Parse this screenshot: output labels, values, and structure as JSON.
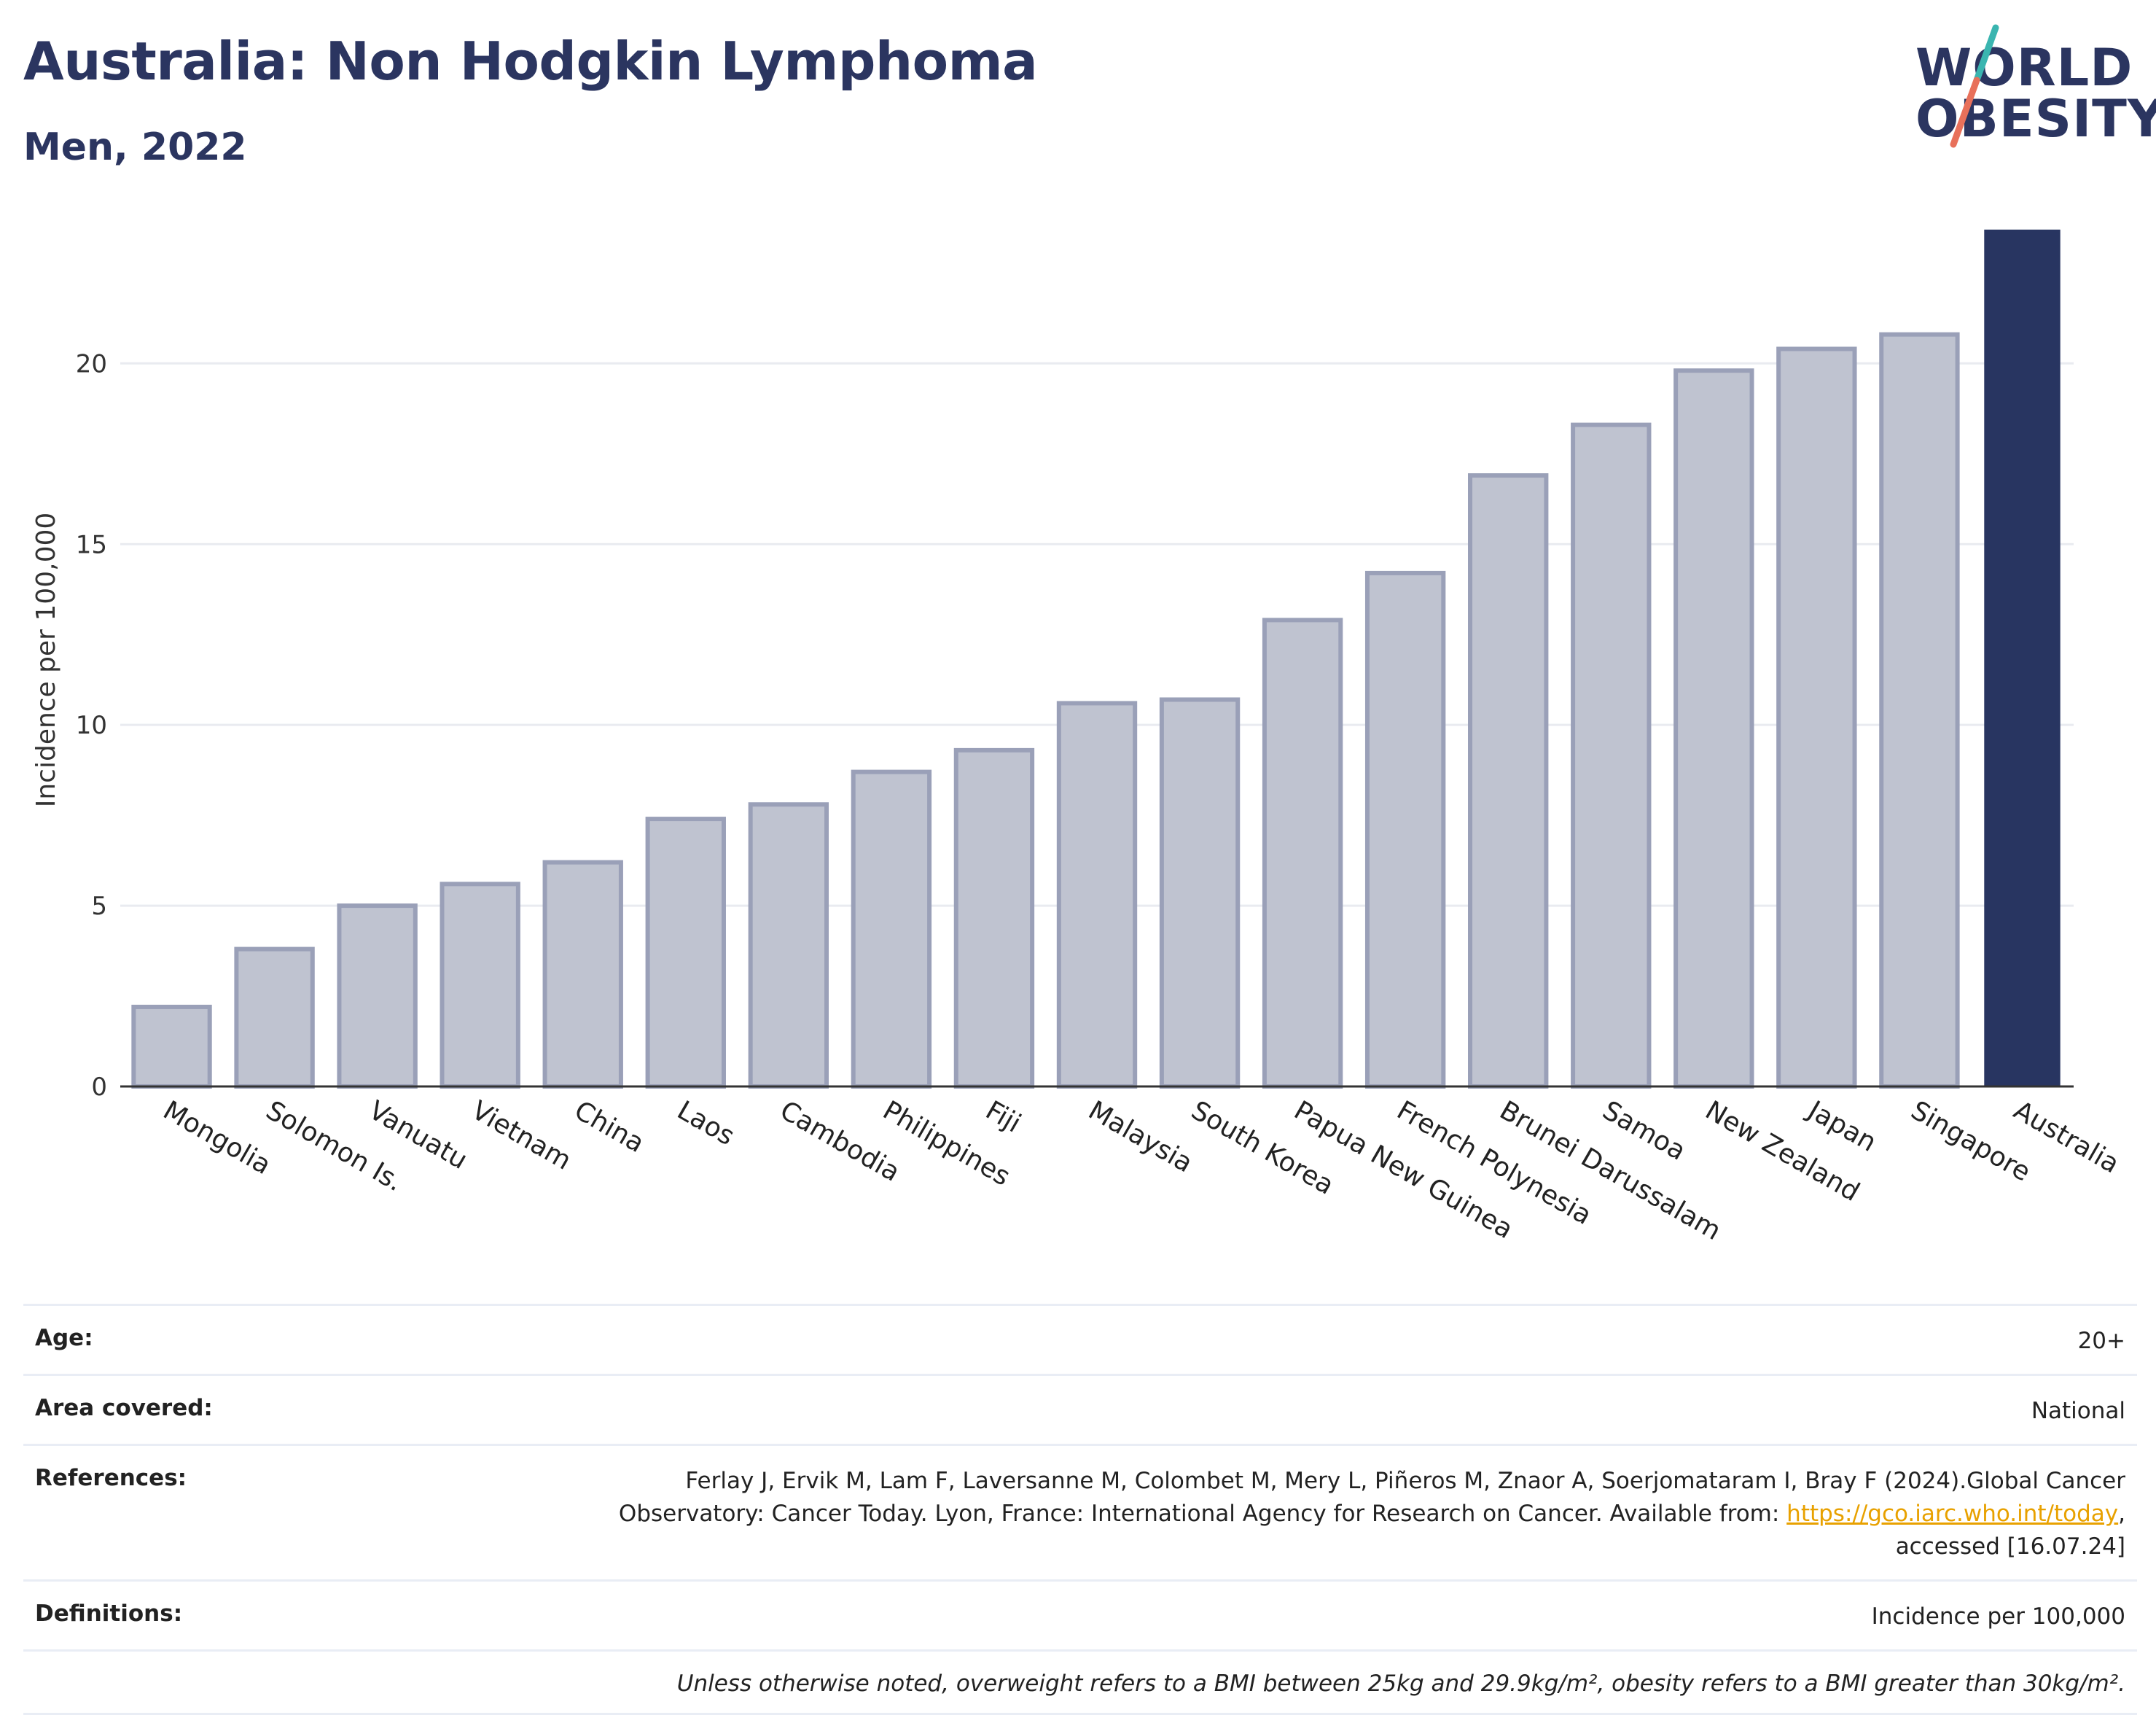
{
  "header": {
    "title": "Australia: Non Hodgkin Lymphoma",
    "subtitle": "Men, 2022"
  },
  "logo": {
    "line1": "WORLD",
    "line2": "OBESITY",
    "colors": {
      "text": "#2b3560",
      "slash_top": "#3ab5b0",
      "slash_bottom": "#e8705a"
    }
  },
  "colors": {
    "bar_default": "#bfc3d0",
    "bar_default_border": "#9aa0b8",
    "bar_highlight": "#283561",
    "grid": "#e9ebf0",
    "axis": "#333333"
  },
  "chart_data": {
    "type": "bar",
    "title": "",
    "xlabel": "",
    "ylabel": "Incidence per 100,000",
    "ylim": [
      0,
      24
    ],
    "yticks": [
      0,
      5,
      10,
      15,
      20
    ],
    "grid": true,
    "highlight": "Australia",
    "categories": [
      "Mongolia",
      "Solomon Is.",
      "Vanuatu",
      "Vietnam",
      "China",
      "Laos",
      "Cambodia",
      "Philippines",
      "Fiji",
      "Malaysia",
      "South Korea",
      "Papua New Guinea",
      "French Polynesia",
      "Brunei Darussalam",
      "Samoa",
      "New Zealand",
      "Japan",
      "Singapore",
      "Australia"
    ],
    "values": [
      2.2,
      3.8,
      5.0,
      5.6,
      6.2,
      7.4,
      7.8,
      8.7,
      9.3,
      10.6,
      10.7,
      12.9,
      14.2,
      16.9,
      18.3,
      19.8,
      20.4,
      20.8,
      23.7
    ]
  },
  "meta": {
    "age_label": "Age:",
    "age_value": "20+",
    "area_label": "Area covered:",
    "area_value": "National",
    "references_label": "References:",
    "references_line1": "Ferlay J, Ervik M, Lam F, Laversanne M, Colombet M, Mery L, Piñeros M, Znaor A, Soerjomataram I, Bray F (2024).Global Cancer",
    "references_line2_pre": "Observatory: Cancer Today. Lyon, France: International Agency for Research on Cancer. Available from: ",
    "references_link": "https://gco.iarc.who.int/today",
    "references_line2_post": ",",
    "references_line3": "accessed [16.07.24]",
    "definitions_label": "Definitions:",
    "definitions_value": "Incidence per 100,000",
    "note": "Unless otherwise noted, overweight refers to a BMI between 25kg and 29.9kg/m², obesity refers to a BMI greater than 30kg/m²."
  }
}
